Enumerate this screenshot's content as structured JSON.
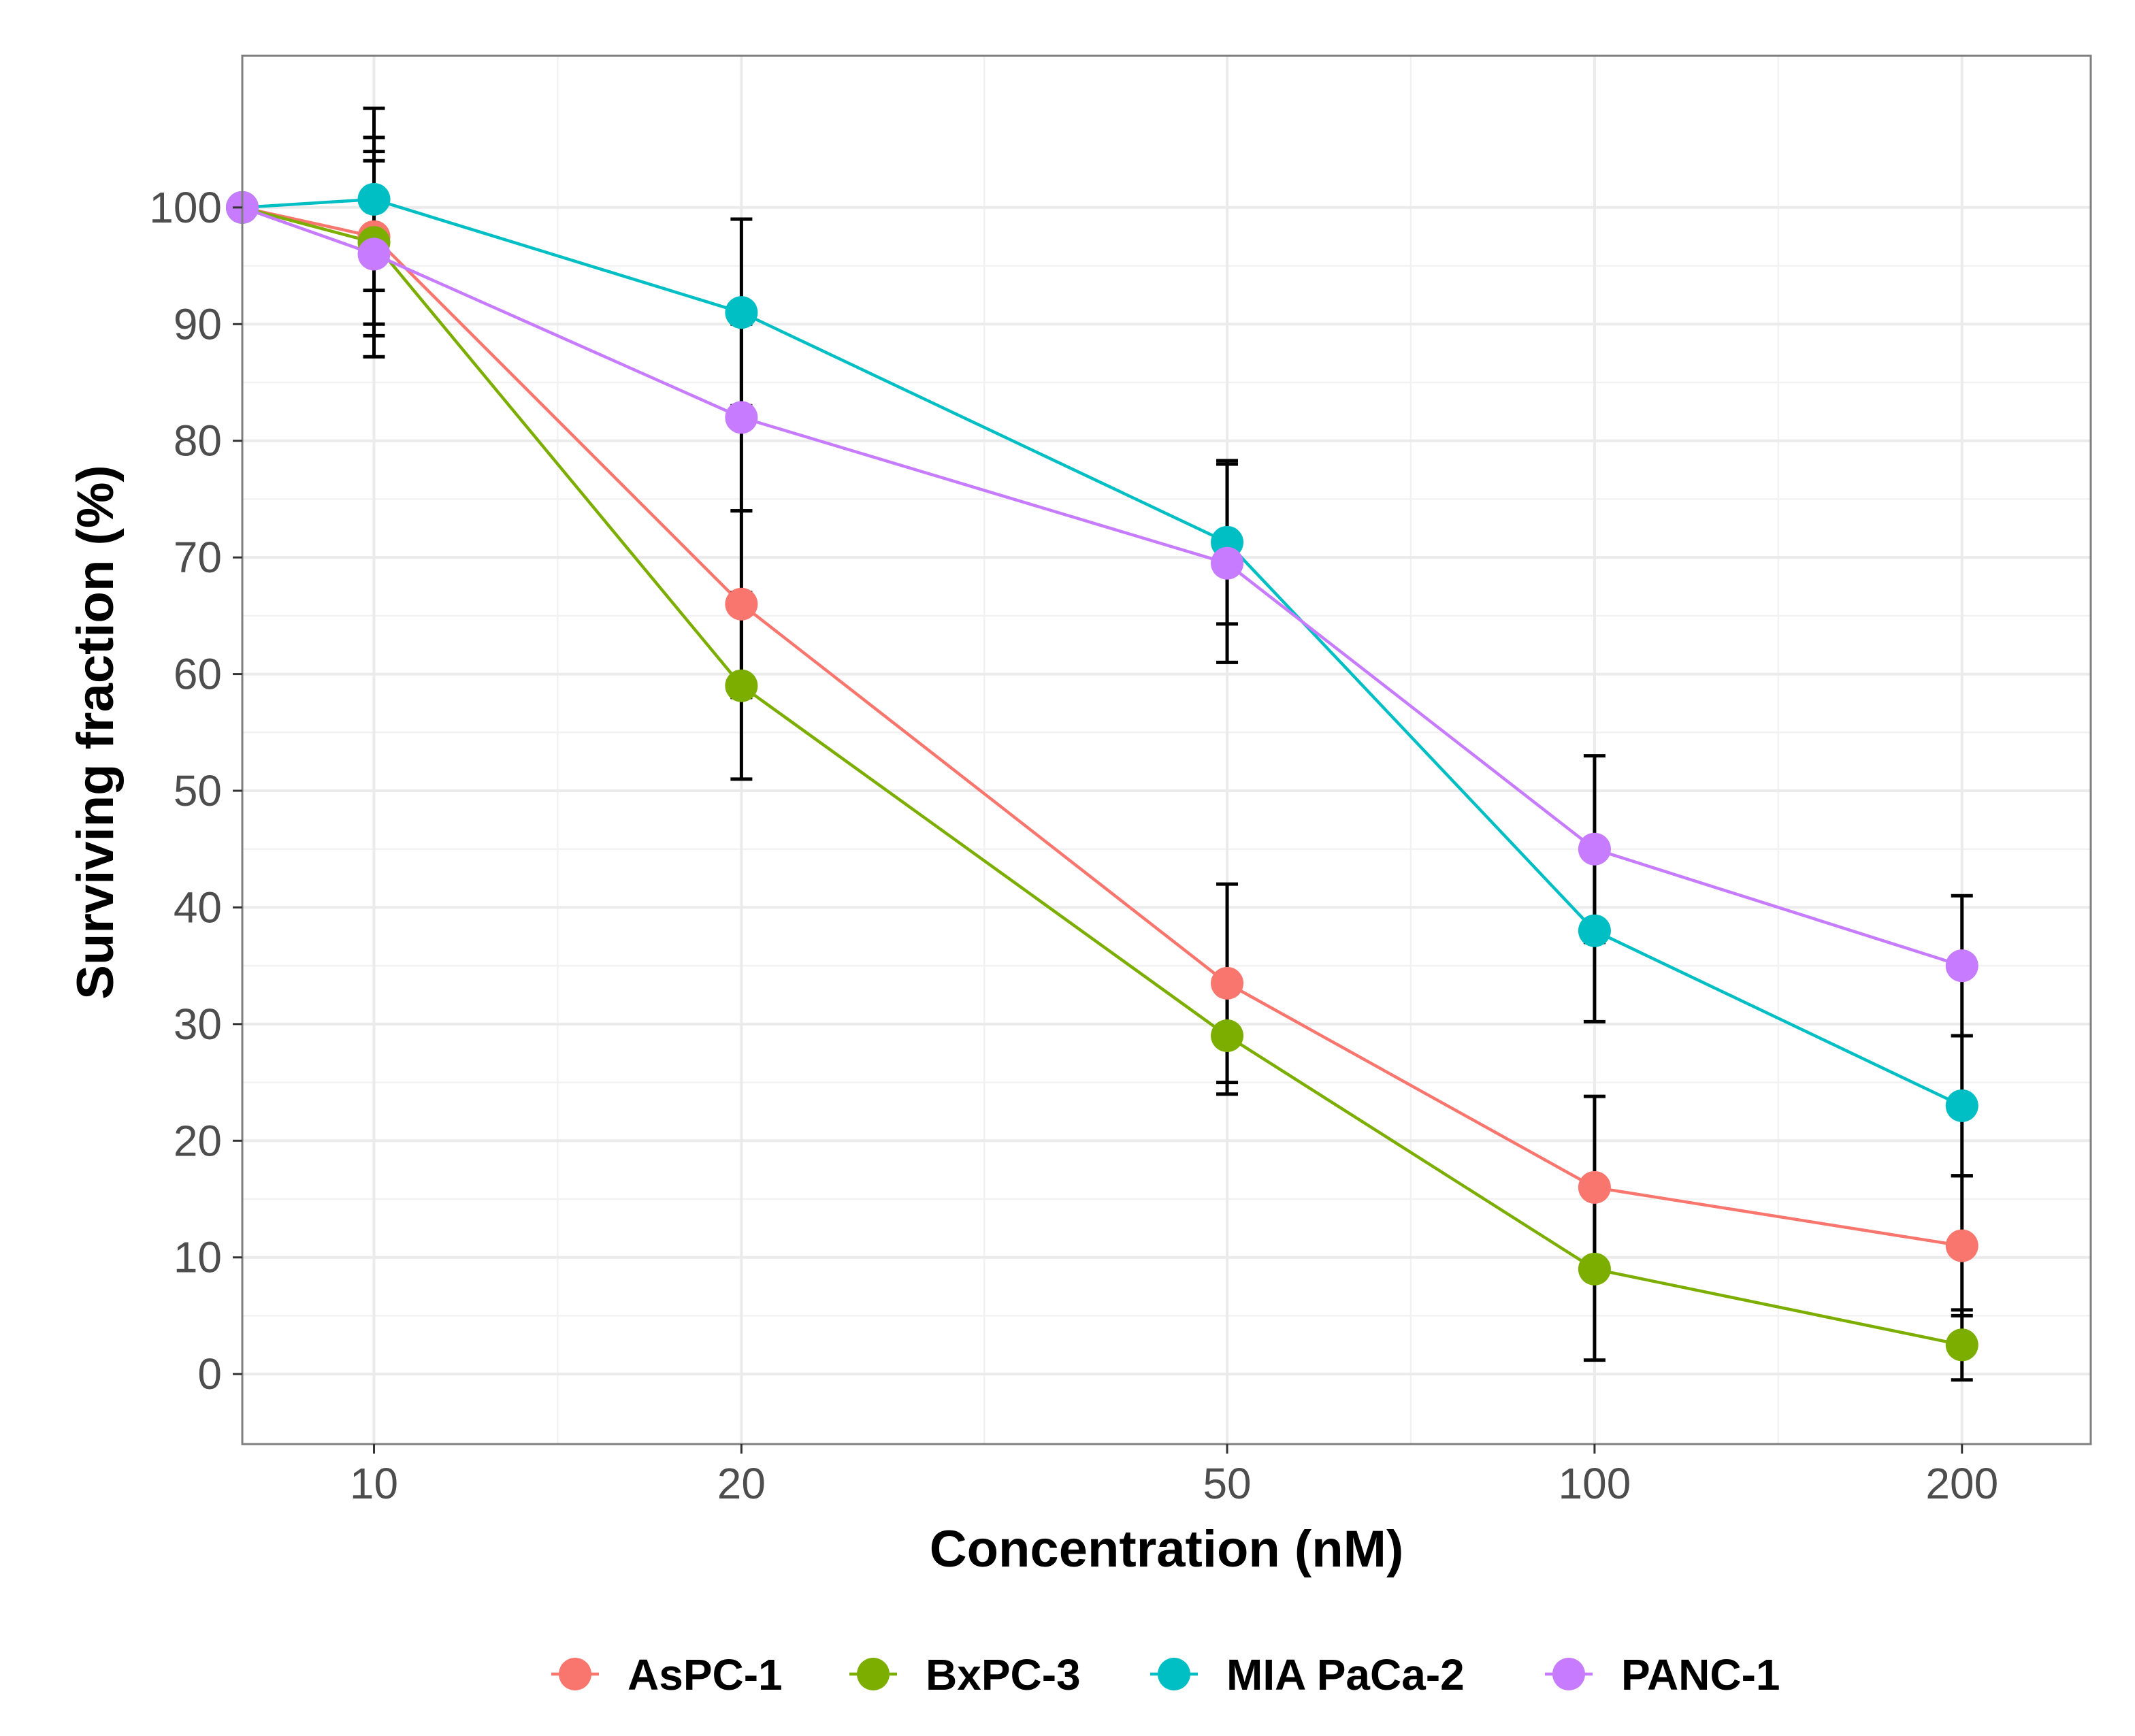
{
  "chart_data": {
    "type": "line",
    "title": "",
    "xlabel": "Concentration (nM)",
    "ylabel": "Surviving fraction (%)",
    "x_scale": "log10",
    "xlim": [
      7.8,
      255
    ],
    "ylim": [
      -6,
      113
    ],
    "x_ticks": [
      10,
      20,
      50,
      100,
      200
    ],
    "x_tick_labels": [
      "10",
      "20",
      "50",
      "100",
      "200"
    ],
    "y_ticks": [
      0,
      10,
      20,
      30,
      40,
      50,
      60,
      70,
      80,
      90,
      100
    ],
    "y_tick_labels": [
      "0",
      "10",
      "20",
      "30",
      "40",
      "50",
      "60",
      "70",
      "80",
      "90",
      "100"
    ],
    "grid": true,
    "legend_position": "bottom",
    "series": [
      {
        "name": "AsPC-1",
        "color": "#F8766D",
        "points": [
          {
            "x": 7.8,
            "y": 100,
            "err": null
          },
          {
            "x": 10,
            "y": 97.5,
            "err": 8.5
          },
          {
            "x": 20,
            "y": 66,
            "err": 8
          },
          {
            "x": 50,
            "y": 33.5,
            "err": 8.5
          },
          {
            "x": 100,
            "y": 16,
            "err": 7.8
          },
          {
            "x": 200,
            "y": 11,
            "err": 6
          }
        ]
      },
      {
        "name": "BxPC-3",
        "color": "#7CAE00",
        "points": [
          {
            "x": 7.8,
            "y": 100,
            "err": null
          },
          {
            "x": 10,
            "y": 97,
            "err": 7
          },
          {
            "x": 20,
            "y": 59,
            "err": 8
          },
          {
            "x": 50,
            "y": 29,
            "err": 5
          },
          {
            "x": 100,
            "y": 9,
            "err": 7.8
          },
          {
            "x": 200,
            "y": 2.5,
            "err": 3
          }
        ]
      },
      {
        "name": "MIA PaCa-2",
        "color": "#00BFC4",
        "points": [
          {
            "x": 7.8,
            "y": 100,
            "err": null
          },
          {
            "x": 10,
            "y": 100.7,
            "err": 7.8
          },
          {
            "x": 20,
            "y": 91,
            "err": 8
          },
          {
            "x": 50,
            "y": 71.3,
            "err": 7
          },
          {
            "x": 100,
            "y": 38,
            "err": 7.8
          },
          {
            "x": 200,
            "y": 23,
            "err": 6
          }
        ]
      },
      {
        "name": "PANC-1",
        "color": "#C77CFF",
        "points": [
          {
            "x": 7.8,
            "y": 100,
            "err": null
          },
          {
            "x": 10,
            "y": 96,
            "err": 8.8
          },
          {
            "x": 20,
            "y": 82,
            "err": 8
          },
          {
            "x": 50,
            "y": 69.5,
            "err": 8.5
          },
          {
            "x": 100,
            "y": 45,
            "err": 8
          },
          {
            "x": 200,
            "y": 35,
            "err": 6
          }
        ]
      }
    ]
  }
}
